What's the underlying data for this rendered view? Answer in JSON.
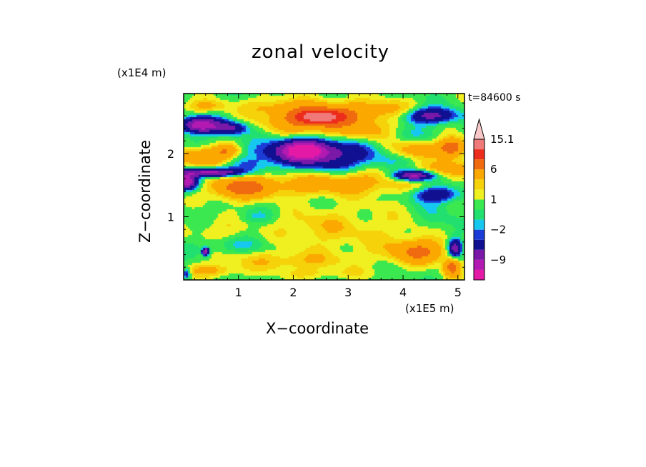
{
  "chart_data": {
    "type": "heatmap",
    "title": "zonal velocity",
    "xlabel": "X−coordinate",
    "ylabel": "Z−coordinate",
    "x_multiplier": "(x1E5 m)",
    "y_multiplier": "(x1E4 m)",
    "time_label": "t=84600 s",
    "xlim": [
      0,
      5.12
    ],
    "ylim": [
      0,
      2.95
    ],
    "x_ticks": [
      {
        "value": 1,
        "label": "1"
      },
      {
        "value": 2,
        "label": "2"
      },
      {
        "value": 3,
        "label": "3"
      },
      {
        "value": 4,
        "label": "4"
      },
      {
        "value": 5,
        "label": "5"
      }
    ],
    "y_ticks": [
      {
        "value": 1,
        "label": "1"
      },
      {
        "value": 2,
        "label": "2"
      }
    ],
    "colorbar": {
      "levels": [
        -15.1,
        -12,
        -9,
        -6,
        -3,
        -2,
        -1,
        0,
        1,
        2,
        3,
        6,
        9,
        12,
        15.1
      ],
      "colors": [
        "#e41aa6",
        "#b21ab2",
        "#7a18a8",
        "#101090",
        "#1c3cd8",
        "#16c8f0",
        "#22e070",
        "#3ce850",
        "#f0f020",
        "#f5d20a",
        "#fba800",
        "#f06a10",
        "#ec2c1c",
        "#f07a7a",
        "#f8c8c8"
      ],
      "labels": [
        {
          "value": 15.1,
          "label": "15.1"
        },
        {
          "value": 6,
          "label": "6"
        },
        {
          "value": 1,
          "label": "1"
        },
        {
          "value": -2,
          "label": "−2"
        },
        {
          "value": -9,
          "label": "−9"
        }
      ],
      "extend_max": true
    },
    "features": [
      {
        "x": 2.5,
        "z": 2.55,
        "sx": 1.0,
        "sz": 0.26,
        "v": 6
      },
      {
        "x": 2.45,
        "z": 2.58,
        "sx": 0.45,
        "sz": 0.12,
        "v": 9
      },
      {
        "x": 2.2,
        "z": 2.05,
        "sx": 0.45,
        "sz": 0.16,
        "v": -12
      },
      {
        "x": 2.6,
        "z": 2.0,
        "sx": 1.4,
        "sz": 0.22,
        "v": -6
      },
      {
        "x": 0.3,
        "z": 2.45,
        "sx": 0.35,
        "sz": 0.12,
        "v": -12
      },
      {
        "x": 0.85,
        "z": 2.4,
        "sx": 0.3,
        "sz": 0.1,
        "v": -7
      },
      {
        "x": 0.4,
        "z": 2.75,
        "sx": 0.4,
        "sz": 0.1,
        "v": 3
      },
      {
        "x": 0.4,
        "z": 1.95,
        "sx": 0.5,
        "sz": 0.15,
        "v": 6
      },
      {
        "x": 0.8,
        "z": 2.05,
        "sx": 0.25,
        "sz": 0.1,
        "v": 4
      },
      {
        "x": 0.5,
        "z": 1.7,
        "sx": 0.5,
        "sz": 0.07,
        "v": -12
      },
      {
        "x": 0.05,
        "z": 1.55,
        "sx": 0.2,
        "sz": 0.12,
        "v": -12
      },
      {
        "x": 1.0,
        "z": 1.45,
        "sx": 0.5,
        "sz": 0.18,
        "v": 6
      },
      {
        "x": 1.9,
        "z": 1.5,
        "sx": 1.1,
        "sz": 0.18,
        "v": 3
      },
      {
        "x": 3.3,
        "z": 1.55,
        "sx": 1.0,
        "sz": 0.2,
        "v": 3
      },
      {
        "x": 4.6,
        "z": 1.35,
        "sx": 0.4,
        "sz": 0.12,
        "v": -6
      },
      {
        "x": 4.75,
        "z": 1.75,
        "sx": 0.5,
        "sz": 0.15,
        "v": 4
      },
      {
        "x": 4.1,
        "z": 2.05,
        "sx": 0.6,
        "sz": 0.15,
        "v": 5
      },
      {
        "x": 4.5,
        "z": 2.6,
        "sx": 0.45,
        "sz": 0.12,
        "v": -8
      },
      {
        "x": 3.9,
        "z": 2.3,
        "sx": 0.6,
        "sz": 0.12,
        "v": -1.5
      },
      {
        "x": 4.2,
        "z": 1.65,
        "sx": 0.35,
        "sz": 0.08,
        "v": -12
      },
      {
        "x": 4.9,
        "z": 2.1,
        "sx": 0.25,
        "sz": 0.15,
        "v": 8
      },
      {
        "x": 1.2,
        "z": 1.8,
        "sx": 0.4,
        "sz": 0.12,
        "v": -1.5
      },
      {
        "x": 2.65,
        "z": 1.8,
        "sx": 0.5,
        "sz": 0.1,
        "v": -1.5
      },
      {
        "x": 3.4,
        "z": 2.3,
        "sx": 0.5,
        "sz": 0.15,
        "v": 3
      },
      {
        "x": 3.6,
        "z": 2.7,
        "sx": 0.7,
        "sz": 0.15,
        "v": 2.5
      },
      {
        "x": 1.6,
        "z": 2.75,
        "sx": 0.5,
        "sz": 0.12,
        "v": 2
      },
      {
        "x": 3.3,
        "z": 0.75,
        "sx": 1.3,
        "sz": 0.45,
        "v": 1.5
      },
      {
        "x": 2.3,
        "z": 0.85,
        "sx": 0.7,
        "sz": 0.25,
        "v": 1.5
      },
      {
        "x": 0.6,
        "z": 0.8,
        "sx": 0.5,
        "sz": 0.2,
        "v": 1.5
      },
      {
        "x": 1.9,
        "z": 0.3,
        "sx": 1.1,
        "sz": 0.15,
        "v": 2.5
      },
      {
        "x": 0.5,
        "z": 0.15,
        "sx": 0.5,
        "sz": 0.1,
        "v": 3
      },
      {
        "x": 4.3,
        "z": 0.45,
        "sx": 0.5,
        "sz": 0.18,
        "v": 6
      },
      {
        "x": 0.9,
        "z": 0.55,
        "sx": 0.6,
        "sz": 0.12,
        "v": -1.5
      },
      {
        "x": 0.4,
        "z": 0.45,
        "sx": 0.06,
        "sz": 0.06,
        "v": -12
      },
      {
        "x": 1.3,
        "z": 1.0,
        "sx": 0.3,
        "sz": 0.1,
        "v": -1.5
      },
      {
        "x": 4.6,
        "z": 1.0,
        "sx": 0.3,
        "sz": 0.25,
        "v": -1.5
      },
      {
        "x": 4.95,
        "z": 0.5,
        "sx": 0.12,
        "sz": 0.15,
        "v": -9
      },
      {
        "x": 4.9,
        "z": 0.2,
        "sx": 0.15,
        "sz": 0.15,
        "v": 7
      },
      {
        "x": 0.05,
        "z": 0.1,
        "sx": 0.08,
        "sz": 0.08,
        "v": -5
      },
      {
        "x": 2.5,
        "z": 0.1,
        "sx": 0.8,
        "sz": 0.08,
        "v": 1.5
      }
    ]
  }
}
